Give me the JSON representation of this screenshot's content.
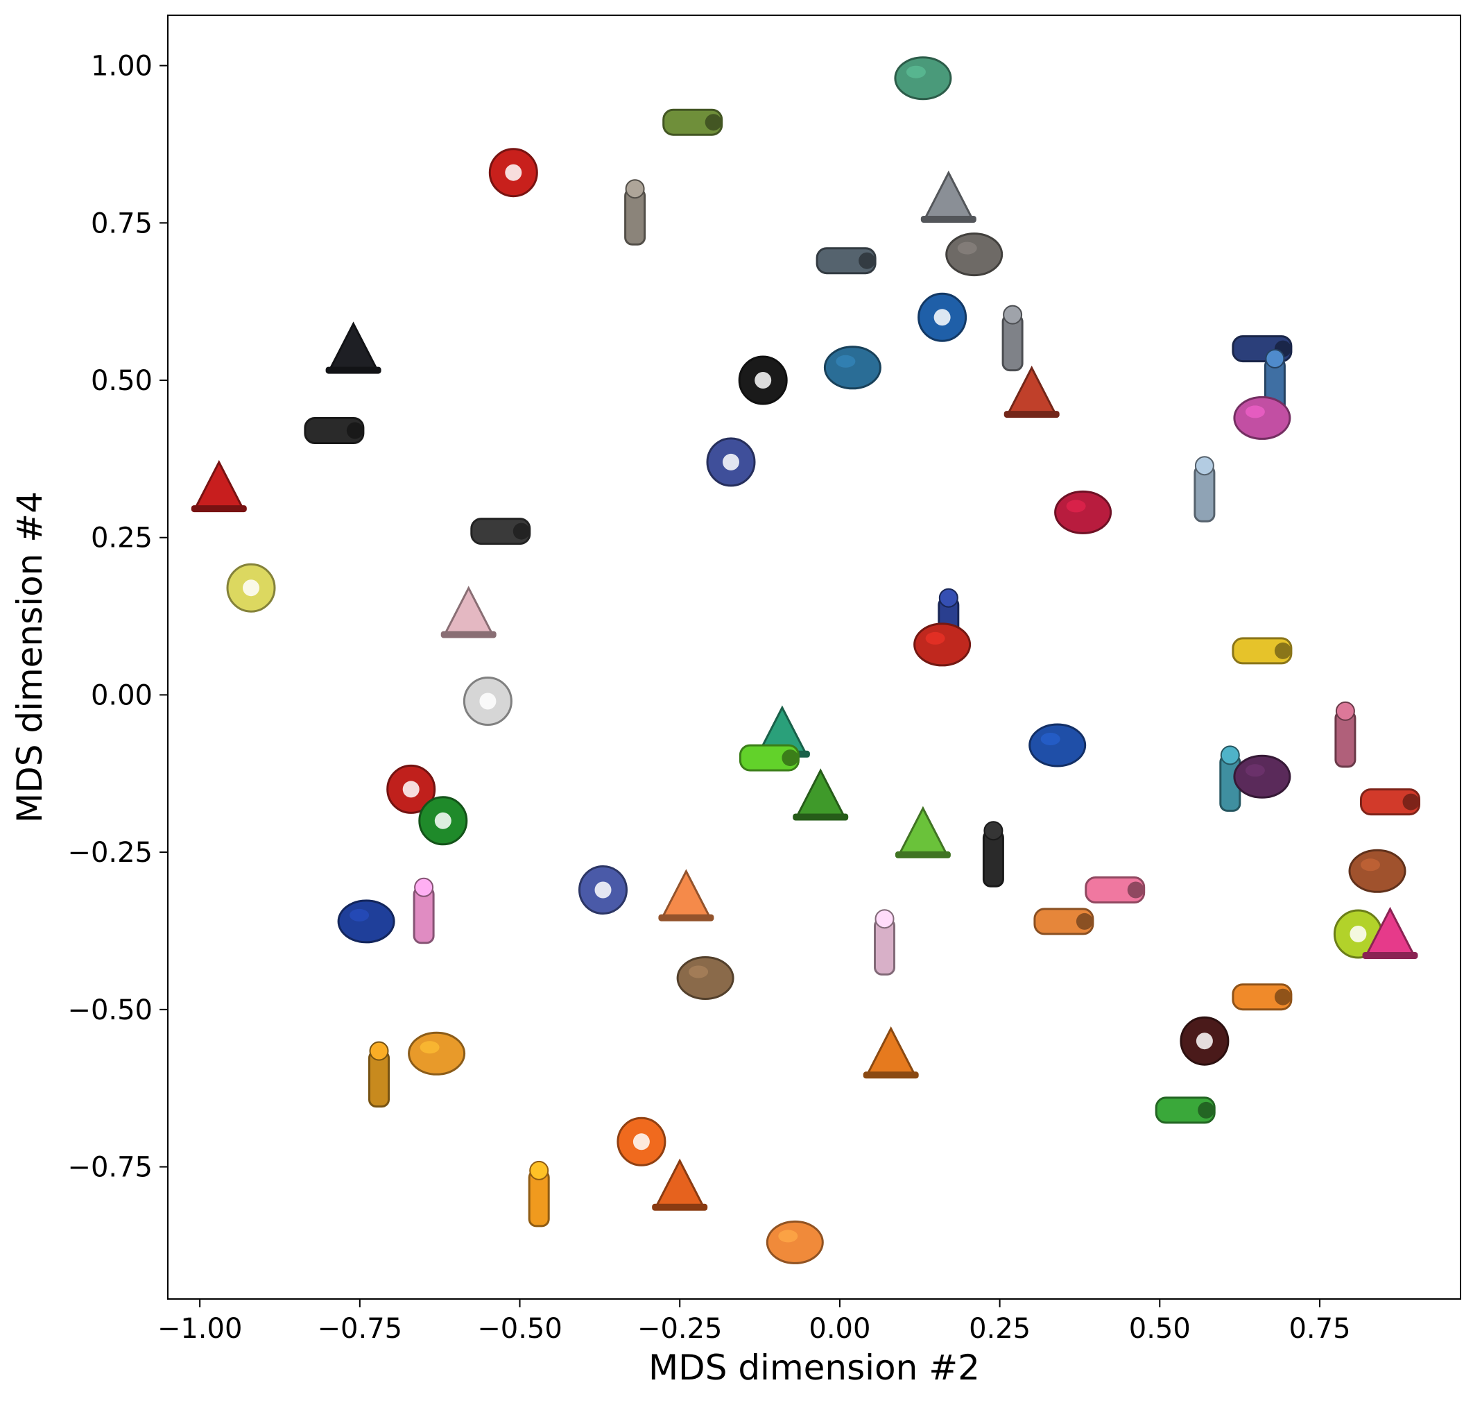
{
  "chart_data": {
    "type": "scatter",
    "title": "",
    "xlabel": "MDS dimension #2",
    "ylabel": "MDS dimension #4",
    "xlim": [
      -1.05,
      0.97
    ],
    "ylim": [
      -0.96,
      1.08
    ],
    "xticks": [
      -1.0,
      -0.75,
      -0.5,
      -0.25,
      0.0,
      0.25,
      0.5,
      0.75
    ],
    "xtick_labels": [
      "−1.00",
      "−0.75",
      "−0.50",
      "−0.25",
      "0.00",
      "0.25",
      "0.50",
      "0.75"
    ],
    "yticks": [
      1.0,
      0.75,
      0.5,
      0.25,
      0.0,
      -0.25,
      -0.5,
      -0.75
    ],
    "ytick_labels": [
      "1.00",
      "0.75",
      "0.50",
      "0.25",
      "0.00",
      "−0.25",
      "−0.50",
      "−0.75"
    ],
    "grid": false,
    "legend": "none",
    "points": [
      {
        "icon": "multi-tube-toy-icon",
        "x": 0.13,
        "y": 0.98,
        "color": "#4a9a7a"
      },
      {
        "icon": "spring-bowl-toy-icon",
        "x": -0.23,
        "y": 0.91,
        "color": "#6f8f3a"
      },
      {
        "icon": "red-twisted-vase-icon",
        "x": -0.51,
        "y": 0.83,
        "color": "#c8201c"
      },
      {
        "icon": "grey-circuit-board-icon",
        "x": 0.17,
        "y": 0.79,
        "color": "#8a8f96"
      },
      {
        "icon": "grey-wavy-shape-icon",
        "x": -0.32,
        "y": 0.76,
        "color": "#8b847a"
      },
      {
        "icon": "wire-ball-icon",
        "x": 0.21,
        "y": 0.7,
        "color": "#6e6a66"
      },
      {
        "icon": "blue-grey-pipe-joint-icon",
        "x": 0.01,
        "y": 0.69,
        "color": "#55636e"
      },
      {
        "icon": "blue-mop-toy-icon",
        "x": 0.16,
        "y": 0.6,
        "color": "#1f5fa8"
      },
      {
        "icon": "black-plunger-bell-icon",
        "x": -0.76,
        "y": 0.55,
        "color": "#1e1f24"
      },
      {
        "icon": "metal-funnel-icon",
        "x": 0.27,
        "y": 0.56,
        "color": "#7f8288"
      },
      {
        "icon": "blue-handle-icon",
        "x": 0.02,
        "y": 0.52,
        "color": "#2a6d96"
      },
      {
        "icon": "jack-toy-icon",
        "x": 0.66,
        "y": 0.55,
        "color": "#2b3f7a"
      },
      {
        "icon": "black-bottle-icon",
        "x": -0.12,
        "y": 0.5,
        "color": "#1a1a1a"
      },
      {
        "icon": "red-fringe-toy-icon",
        "x": 0.3,
        "y": 0.48,
        "color": "#c0402a"
      },
      {
        "icon": "rope-toy-icon",
        "x": 0.68,
        "y": 0.49,
        "color": "#3f6fa3"
      },
      {
        "icon": "colorful-bead-cluster-icon",
        "x": 0.66,
        "y": 0.44,
        "color": "#c24fa3"
      },
      {
        "icon": "black-speaker-ball-icon",
        "x": -0.79,
        "y": 0.42,
        "color": "#2a2a2a"
      },
      {
        "icon": "rainbow-cross-toy-icon",
        "x": -0.17,
        "y": 0.37,
        "color": "#3f4f9a"
      },
      {
        "icon": "red-fan-stand-icon",
        "x": -0.97,
        "y": 0.33,
        "color": "#c81e1e"
      },
      {
        "icon": "paperclip-chain-icon",
        "x": 0.57,
        "y": 0.32,
        "color": "#8fa3b5"
      },
      {
        "icon": "red-spiky-ball-icon",
        "x": 0.38,
        "y": 0.29,
        "color": "#b81c3e"
      },
      {
        "icon": "black-white-ball-icon",
        "x": -0.53,
        "y": 0.26,
        "color": "#3a3a3a"
      },
      {
        "icon": "yellow-holed-cylinder-icon",
        "x": -0.92,
        "y": 0.17,
        "color": "#dcd860"
      },
      {
        "icon": "pink-bead-chain-icon",
        "x": -0.58,
        "y": 0.13,
        "color": "#e4b8c2"
      },
      {
        "icon": "blue-stick-toy-icon",
        "x": 0.17,
        "y": 0.11,
        "color": "#2a3f8f"
      },
      {
        "icon": "red-dotted-toy-icon",
        "x": 0.16,
        "y": 0.08,
        "color": "#c0281e"
      },
      {
        "icon": "yellow-wheel-stick-icon",
        "x": 0.66,
        "y": 0.07,
        "color": "#e6c32a"
      },
      {
        "icon": "white-sphere-skate-icon",
        "x": -0.55,
        "y": -0.01,
        "color": "#d6d6d6"
      },
      {
        "icon": "green-shoe-toy-icon",
        "x": -0.09,
        "y": -0.06,
        "color": "#2aa07a"
      },
      {
        "icon": "purple-wand-icon",
        "x": 0.79,
        "y": -0.07,
        "color": "#b0607a"
      },
      {
        "icon": "brush-tool-icon",
        "x": 0.34,
        "y": -0.08,
        "color": "#1f4fa8"
      },
      {
        "icon": "lime-bone-toy-icon",
        "x": -0.11,
        "y": -0.1,
        "color": "#62d22a"
      },
      {
        "icon": "red-bow-toy-icon",
        "x": -0.67,
        "y": -0.15,
        "color": "#c0201c"
      },
      {
        "icon": "green-spiky-donut-icon",
        "x": -0.03,
        "y": -0.16,
        "color": "#3f9a2a"
      },
      {
        "icon": "colorful-book-icon",
        "x": 0.61,
        "y": -0.14,
        "color": "#3f8fa0"
      },
      {
        "icon": "purple-maraca-icon",
        "x": 0.66,
        "y": -0.13,
        "color": "#5a2a5a"
      },
      {
        "icon": "colorful-block-tower-icon",
        "x": 0.86,
        "y": -0.17,
        "color": "#d23a2a"
      },
      {
        "icon": "green-cone-boat-icon",
        "x": -0.62,
        "y": -0.2,
        "color": "#1f8a2a"
      },
      {
        "icon": "green-clamshell-icon",
        "x": 0.13,
        "y": -0.22,
        "color": "#6ac23a"
      },
      {
        "icon": "black-blower-bulb-icon",
        "x": 0.24,
        "y": -0.26,
        "color": "#2a2a2a"
      },
      {
        "icon": "wooden-mallet-icon",
        "x": 0.84,
        "y": -0.28,
        "color": "#a0522d"
      },
      {
        "icon": "pink-feather-toy-icon",
        "x": 0.43,
        "y": -0.31,
        "color": "#f078a0"
      },
      {
        "icon": "blue-cone-icon",
        "x": -0.37,
        "y": -0.31,
        "color": "#4a5aa8"
      },
      {
        "icon": "orange-spiky-tri-toy-icon",
        "x": -0.24,
        "y": -0.32,
        "color": "#f58a4a"
      },
      {
        "icon": "pink-ring-toy-icon",
        "x": -0.65,
        "y": -0.35,
        "color": "#e08cc2"
      },
      {
        "icon": "blue-claw-toy-icon",
        "x": -0.74,
        "y": -0.36,
        "color": "#1f3f9a"
      },
      {
        "icon": "orange-lantern-ball-icon",
        "x": 0.35,
        "y": -0.36,
        "color": "#e6863a"
      },
      {
        "icon": "lime-yoyo-string-icon",
        "x": 0.81,
        "y": -0.38,
        "color": "#b2d22a"
      },
      {
        "icon": "pink-cord-toy-icon",
        "x": 0.86,
        "y": -0.38,
        "color": "#e63a8a"
      },
      {
        "icon": "lollipop-stand-icon",
        "x": 0.07,
        "y": -0.4,
        "color": "#d8b0c8"
      },
      {
        "icon": "brown-holed-stick-icon",
        "x": -0.21,
        "y": -0.45,
        "color": "#8a6a4a"
      },
      {
        "icon": "orange-green-whistle-icon",
        "x": 0.66,
        "y": -0.48,
        "color": "#f08a2a"
      },
      {
        "icon": "dark-fork-stick-icon",
        "x": 0.57,
        "y": -0.55,
        "color": "#4a1a1a"
      },
      {
        "icon": "orange-bell-jar-icon",
        "x": 0.08,
        "y": -0.57,
        "color": "#e67a1e"
      },
      {
        "icon": "amber-knot-ball-icon",
        "x": -0.72,
        "y": -0.61,
        "color": "#c88a1e"
      },
      {
        "icon": "orange-eye-ball-icon",
        "x": -0.63,
        "y": -0.57,
        "color": "#e89a2a"
      },
      {
        "icon": "green-slingshot-icon",
        "x": 0.54,
        "y": -0.66,
        "color": "#3aa83a"
      },
      {
        "icon": "orange-gear-ring-icon",
        "x": -0.31,
        "y": -0.71,
        "color": "#f06a1e"
      },
      {
        "icon": "orange-barrel-icon",
        "x": -0.25,
        "y": -0.78,
        "color": "#e6621e"
      },
      {
        "icon": "orange-grabber-icon",
        "x": -0.47,
        "y": -0.8,
        "color": "#f09a1e"
      },
      {
        "icon": "orange-bead-rod-icon",
        "x": -0.07,
        "y": -0.87,
        "color": "#f08a3a"
      }
    ]
  }
}
